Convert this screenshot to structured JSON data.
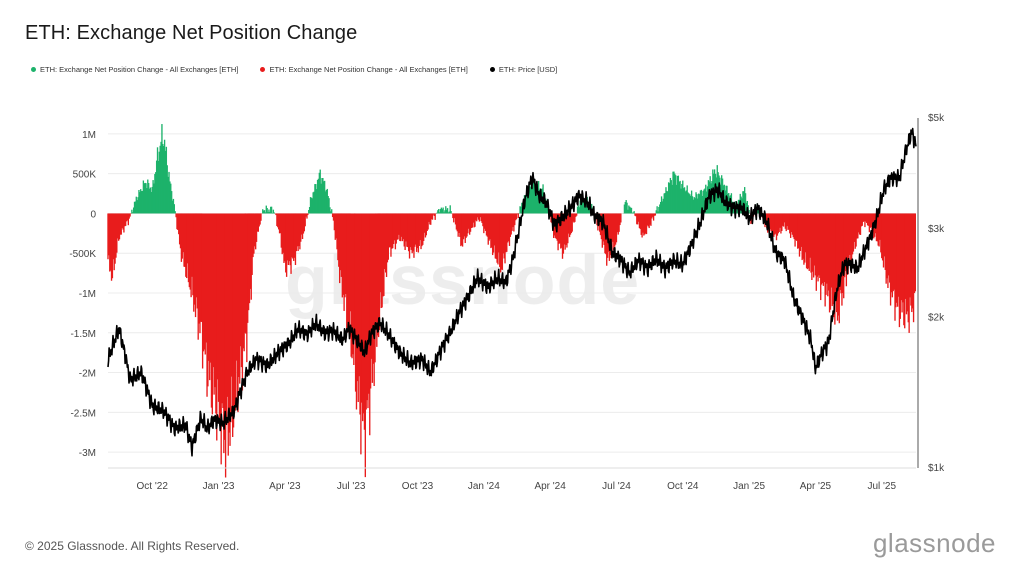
{
  "title": "ETH: Exchange Net Position Change",
  "legend": [
    {
      "label": "ETH: Exchange Net Position Change - All Exchanges [ETH]",
      "color": "#1db26b"
    },
    {
      "label": "ETH: Exchange Net Position Change - All Exchanges [ETH]",
      "color": "#e81c1c"
    },
    {
      "label": "ETH: Price [USD]",
      "color": "#000000"
    }
  ],
  "watermark": "glassnode",
  "footer": "© 2025 Glassnode. All Rights Reserved.",
  "brand": "glassnode",
  "chart_data": {
    "type": "bar",
    "title": "ETH: Exchange Net Position Change",
    "x_ticks": [
      "Oct '22",
      "Jan '23",
      "Apr '23",
      "Jul '23",
      "Oct '23",
      "Jan '24",
      "Apr '24",
      "Jul '24",
      "Oct '24",
      "Jan '25",
      "Apr '25",
      "Jul '25"
    ],
    "x_tick_months": [
      3,
      6,
      9,
      12,
      15,
      18,
      21,
      24,
      27,
      30,
      33,
      36
    ],
    "x_range_months": [
      1.0,
      37.55
    ],
    "y_left": {
      "ticks": [
        1000000,
        500000,
        0,
        -500000,
        -1000000,
        -1500000,
        -2000000,
        -2500000,
        -3000000
      ],
      "tick_labels": [
        "1M",
        "500K",
        "0",
        "-500K",
        "-1M",
        "-1.5M",
        "-2M",
        "-2.5M",
        "-3M"
      ],
      "range": [
        -3200000,
        1200000
      ]
    },
    "y_right": {
      "scale": "log",
      "ticks": [
        5000,
        3000,
        2000,
        1000
      ],
      "tick_labels": [
        "$5k",
        "$3k",
        "$2k",
        "$1k"
      ],
      "range": [
        1000,
        5000
      ]
    },
    "netflow_anchors": [
      [
        1.0,
        -600000
      ],
      [
        1.2,
        -800000
      ],
      [
        1.5,
        -300000
      ],
      [
        2.0,
        -50000
      ],
      [
        2.3,
        200000
      ],
      [
        2.7,
        400000
      ],
      [
        3.0,
        300000
      ],
      [
        3.3,
        800000
      ],
      [
        3.5,
        1000000
      ],
      [
        3.8,
        400000
      ],
      [
        4.0,
        100000
      ],
      [
        4.3,
        -500000
      ],
      [
        4.8,
        -1000000
      ],
      [
        5.2,
        -1500000
      ],
      [
        5.5,
        -2000000
      ],
      [
        6.0,
        -2500000
      ],
      [
        6.3,
        -2900000
      ],
      [
        6.7,
        -2500000
      ],
      [
        7.0,
        -2000000
      ],
      [
        7.3,
        -1500000
      ],
      [
        7.6,
        -500000
      ],
      [
        8.0,
        50000
      ],
      [
        8.5,
        50000
      ],
      [
        8.8,
        -300000
      ],
      [
        9.0,
        -700000
      ],
      [
        9.4,
        -600000
      ],
      [
        9.8,
        -300000
      ],
      [
        10.2,
        200000
      ],
      [
        10.6,
        500000
      ],
      [
        10.9,
        300000
      ],
      [
        11.2,
        -100000
      ],
      [
        11.5,
        -800000
      ],
      [
        12.0,
        -1600000
      ],
      [
        12.3,
        -2300000
      ],
      [
        12.6,
        -2800000
      ],
      [
        12.9,
        -2200000
      ],
      [
        13.3,
        -1300000
      ],
      [
        13.7,
        -500000
      ],
      [
        14.2,
        -300000
      ],
      [
        14.7,
        -500000
      ],
      [
        15.2,
        -400000
      ],
      [
        15.6,
        -100000
      ],
      [
        16.0,
        50000
      ],
      [
        16.5,
        50000
      ],
      [
        17.0,
        -400000
      ],
      [
        17.3,
        -250000
      ],
      [
        17.8,
        -50000
      ],
      [
        18.3,
        -400000
      ],
      [
        18.8,
        -700000
      ],
      [
        19.2,
        -300000
      ],
      [
        19.7,
        100000
      ],
      [
        20.2,
        400000
      ],
      [
        20.7,
        300000
      ],
      [
        21.2,
        -300000
      ],
      [
        21.6,
        -500000
      ],
      [
        22.0,
        -200000
      ],
      [
        22.4,
        200000
      ],
      [
        22.8,
        150000
      ],
      [
        23.2,
        -200000
      ],
      [
        23.6,
        -600000
      ],
      [
        24.0,
        -350000
      ],
      [
        24.4,
        150000
      ],
      [
        24.8,
        0
      ],
      [
        25.2,
        -300000
      ],
      [
        25.6,
        -100000
      ],
      [
        26.1,
        200000
      ],
      [
        26.6,
        500000
      ],
      [
        27.0,
        350000
      ],
      [
        27.5,
        200000
      ],
      [
        28.0,
        300000
      ],
      [
        28.5,
        550000
      ],
      [
        29.0,
        300000
      ],
      [
        29.4,
        100000
      ],
      [
        29.8,
        300000
      ],
      [
        30.1,
        -100000
      ],
      [
        30.4,
        100000
      ],
      [
        30.8,
        -200000
      ],
      [
        31.2,
        -300000
      ],
      [
        31.6,
        -150000
      ],
      [
        32.0,
        -300000
      ],
      [
        32.5,
        -600000
      ],
      [
        33.0,
        -800000
      ],
      [
        33.5,
        -1000000
      ],
      [
        34.0,
        -1300000
      ],
      [
        34.4,
        -800000
      ],
      [
        34.8,
        -400000
      ],
      [
        35.2,
        -100000
      ],
      [
        35.5,
        -200000
      ],
      [
        35.9,
        -400000
      ],
      [
        36.3,
        -900000
      ],
      [
        36.7,
        -1200000
      ],
      [
        37.2,
        -1300000
      ],
      [
        37.55,
        -1100000
      ]
    ],
    "price_anchors": [
      [
        1.0,
        1650
      ],
      [
        1.5,
        1900
      ],
      [
        2.0,
        1500
      ],
      [
        2.5,
        1550
      ],
      [
        3.0,
        1330
      ],
      [
        3.5,
        1300
      ],
      [
        4.0,
        1200
      ],
      [
        4.5,
        1220
      ],
      [
        4.8,
        1100
      ],
      [
        5.2,
        1260
      ],
      [
        5.5,
        1200
      ],
      [
        5.8,
        1250
      ],
      [
        6.2,
        1230
      ],
      [
        6.7,
        1300
      ],
      [
        7.3,
        1550
      ],
      [
        7.7,
        1650
      ],
      [
        8.2,
        1600
      ],
      [
        8.7,
        1700
      ],
      [
        9.2,
        1780
      ],
      [
        9.6,
        1900
      ],
      [
        10.0,
        1850
      ],
      [
        10.4,
        1950
      ],
      [
        10.8,
        1860
      ],
      [
        11.2,
        1880
      ],
      [
        11.6,
        1800
      ],
      [
        11.9,
        1900
      ],
      [
        12.2,
        1820
      ],
      [
        12.6,
        1700
      ],
      [
        12.9,
        1850
      ],
      [
        13.3,
        1950
      ],
      [
        13.7,
        1850
      ],
      [
        14.2,
        1700
      ],
      [
        14.7,
        1620
      ],
      [
        15.2,
        1650
      ],
      [
        15.6,
        1550
      ],
      [
        16.0,
        1700
      ],
      [
        16.5,
        1870
      ],
      [
        16.9,
        2050
      ],
      [
        17.3,
        2200
      ],
      [
        17.7,
        2400
      ],
      [
        18.2,
        2300
      ],
      [
        18.6,
        2400
      ],
      [
        19.0,
        2350
      ],
      [
        19.3,
        2600
      ],
      [
        19.6,
        3000
      ],
      [
        19.9,
        3500
      ],
      [
        20.2,
        3800
      ],
      [
        20.5,
        3500
      ],
      [
        20.8,
        3400
      ],
      [
        21.2,
        3050
      ],
      [
        21.5,
        3150
      ],
      [
        21.9,
        3300
      ],
      [
        22.3,
        3500
      ],
      [
        22.7,
        3400
      ],
      [
        23.0,
        3200
      ],
      [
        23.4,
        3100
      ],
      [
        23.8,
        2700
      ],
      [
        24.2,
        2600
      ],
      [
        24.6,
        2450
      ],
      [
        25.0,
        2600
      ],
      [
        25.4,
        2500
      ],
      [
        25.8,
        2620
      ],
      [
        26.2,
        2500
      ],
      [
        26.6,
        2600
      ],
      [
        27.0,
        2550
      ],
      [
        27.4,
        2800
      ],
      [
        27.8,
        3100
      ],
      [
        28.2,
        3500
      ],
      [
        28.6,
        3600
      ],
      [
        28.9,
        3400
      ],
      [
        29.3,
        3300
      ],
      [
        29.7,
        3300
      ],
      [
        30.0,
        3150
      ],
      [
        30.4,
        3300
      ],
      [
        30.8,
        3100
      ],
      [
        31.2,
        2700
      ],
      [
        31.6,
        2600
      ],
      [
        32.0,
        2200
      ],
      [
        32.4,
        2000
      ],
      [
        32.8,
        1800
      ],
      [
        33.0,
        1580
      ],
      [
        33.3,
        1700
      ],
      [
        33.6,
        1780
      ],
      [
        34.0,
        2300
      ],
      [
        34.3,
        2550
      ],
      [
        34.6,
        2550
      ],
      [
        34.9,
        2500
      ],
      [
        35.2,
        2700
      ],
      [
        35.5,
        2900
      ],
      [
        35.8,
        3200
      ],
      [
        36.1,
        3600
      ],
      [
        36.4,
        3800
      ],
      [
        36.8,
        3800
      ],
      [
        37.1,
        4300
      ],
      [
        37.35,
        4700
      ],
      [
        37.55,
        4400
      ]
    ]
  }
}
